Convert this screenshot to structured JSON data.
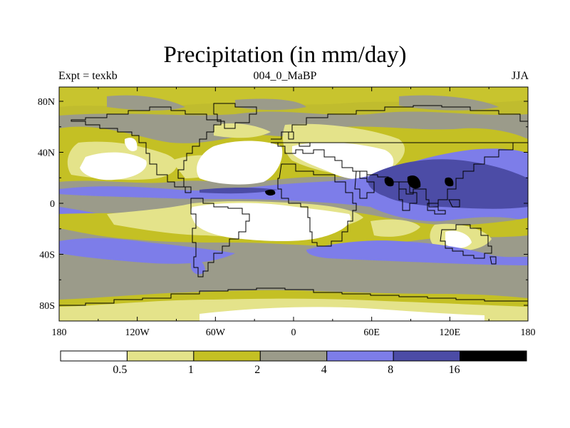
{
  "header": {
    "title": "Precipitation (in mm/day)",
    "left": "Expt = texkb",
    "center": "004_0_MaBP",
    "right": "JJA"
  },
  "map": {
    "lat_labels": [
      "80N",
      "40N",
      "0",
      "40S",
      "80S"
    ],
    "lon_labels": [
      "180",
      "120W",
      "60W",
      "0",
      "60E",
      "120E",
      "180"
    ]
  },
  "legend": {
    "levels": [
      "0.5",
      "1",
      "2",
      "4",
      "8",
      "16"
    ],
    "colors": [
      "#ffffff",
      "#e4e38a",
      "#c4c024",
      "#9b9b8a",
      "#7d7de9",
      "#4c4ca6",
      "#000000"
    ]
  },
  "colors": {
    "land_outline": "#000000",
    "frame": "#000000"
  }
}
